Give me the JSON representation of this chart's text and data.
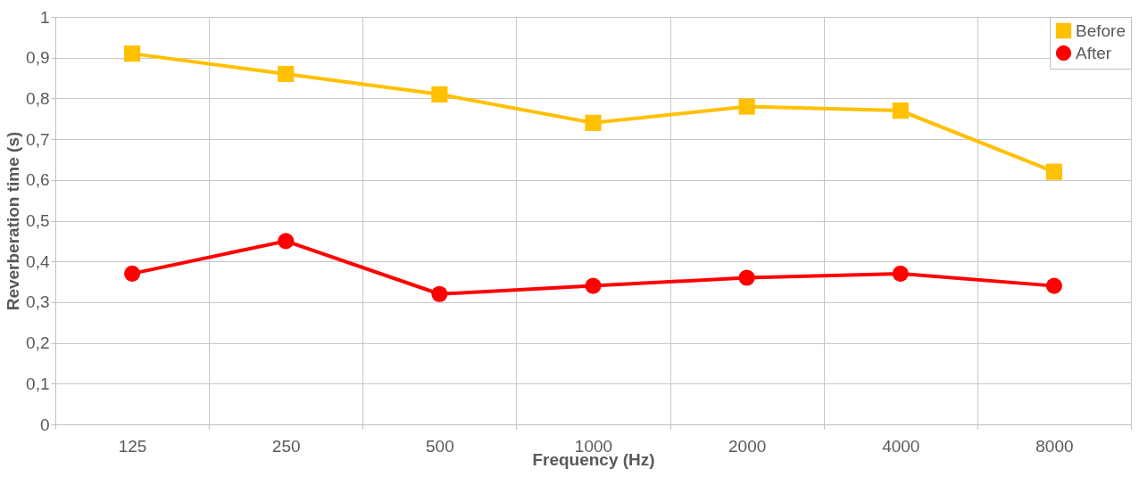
{
  "chart_data": {
    "type": "line",
    "xlabel": "Frequency (Hz)",
    "ylabel": "Reverberation time (s)",
    "categories": [
      "125",
      "250",
      "500",
      "1000",
      "2000",
      "4000",
      "8000"
    ],
    "series": [
      {
        "name": "Before",
        "color": "#ffc000",
        "marker": "square",
        "values": [
          0.91,
          0.86,
          0.81,
          0.74,
          0.78,
          0.77,
          0.62
        ]
      },
      {
        "name": "After",
        "color": "#ff0000",
        "marker": "circle",
        "values": [
          0.37,
          0.45,
          0.32,
          0.34,
          0.36,
          0.37,
          0.34
        ]
      }
    ],
    "ylim": [
      0,
      1
    ],
    "yticks": [
      0,
      {
        "value": 0.1,
        "label": "0,1"
      },
      {
        "value": 0.2,
        "label": "0,2"
      },
      {
        "value": 0.3,
        "label": "0,3"
      },
      {
        "value": 0.4,
        "label": "0,4"
      },
      {
        "value": 0.5,
        "label": "0,5"
      },
      {
        "value": 0.6,
        "label": "0,6"
      },
      {
        "value": 0.7,
        "label": "0,7"
      },
      {
        "value": 0.8,
        "label": "0,8"
      },
      {
        "value": 0.9,
        "label": "0,9"
      },
      1
    ],
    "grid": true,
    "legend": "top right",
    "line_style": "solid"
  }
}
